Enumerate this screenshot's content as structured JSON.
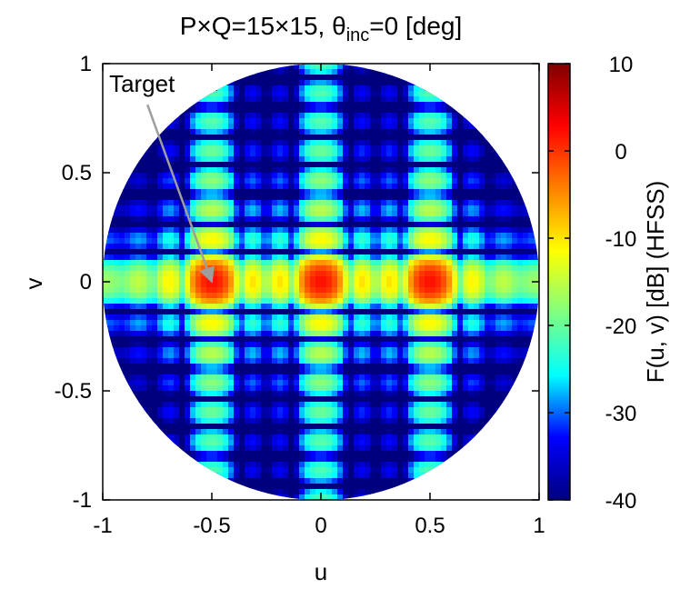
{
  "chart_data": {
    "type": "heatmap",
    "title": {
      "prefix": "P×Q=15×15, θ",
      "subscript": "inc",
      "suffix": "=0 [deg]"
    },
    "xlabel": "u",
    "ylabel": "v",
    "colorbar_label": "F(u, v) [dB] (HFSS)",
    "xlim": [
      -1,
      1
    ],
    "ylim": [
      -1,
      1
    ],
    "clim": [
      -40,
      10
    ],
    "x_ticks": [
      {
        "value": -1,
        "label": "-1"
      },
      {
        "value": -0.5,
        "label": "-0.5"
      },
      {
        "value": 0,
        "label": "0"
      },
      {
        "value": 0.5,
        "label": "0.5"
      },
      {
        "value": 1,
        "label": "1"
      }
    ],
    "y_ticks": [
      {
        "value": 1,
        "label": "1"
      },
      {
        "value": 0.5,
        "label": "0.5"
      },
      {
        "value": 0,
        "label": "0"
      },
      {
        "value": -0.5,
        "label": "-0.5"
      },
      {
        "value": -1,
        "label": "-1"
      }
    ],
    "colorbar_ticks": [
      {
        "value": 10,
        "label": "10"
      },
      {
        "value": 0,
        "label": "0"
      },
      {
        "value": -10,
        "label": "-10"
      },
      {
        "value": -20,
        "label": "-20"
      },
      {
        "value": -30,
        "label": "-30"
      },
      {
        "value": -40,
        "label": "-40"
      }
    ],
    "colormap": [
      "#00007f",
      "#0000ff",
      "#00ffff",
      "#80ff80",
      "#ffff00",
      "#ff8000",
      "#ff0000",
      "#7f0000"
    ],
    "background_level_db": -35,
    "region": "unit circle u^2+v^2<=1",
    "main_beams": [
      {
        "u": 0,
        "v": 0,
        "level_db": 0
      },
      {
        "u": 0.5,
        "v": 0,
        "level_db": 0
      },
      {
        "u": -0.5,
        "v": 0,
        "level_db": 0
      }
    ],
    "annotation": {
      "text": "Target",
      "points_to": {
        "u": -0.5,
        "v": 0
      },
      "text_at": {
        "u": -0.82,
        "v": 0.87
      },
      "color": "#9e9e9e"
    },
    "grid": false,
    "colorbar_position": "right"
  }
}
